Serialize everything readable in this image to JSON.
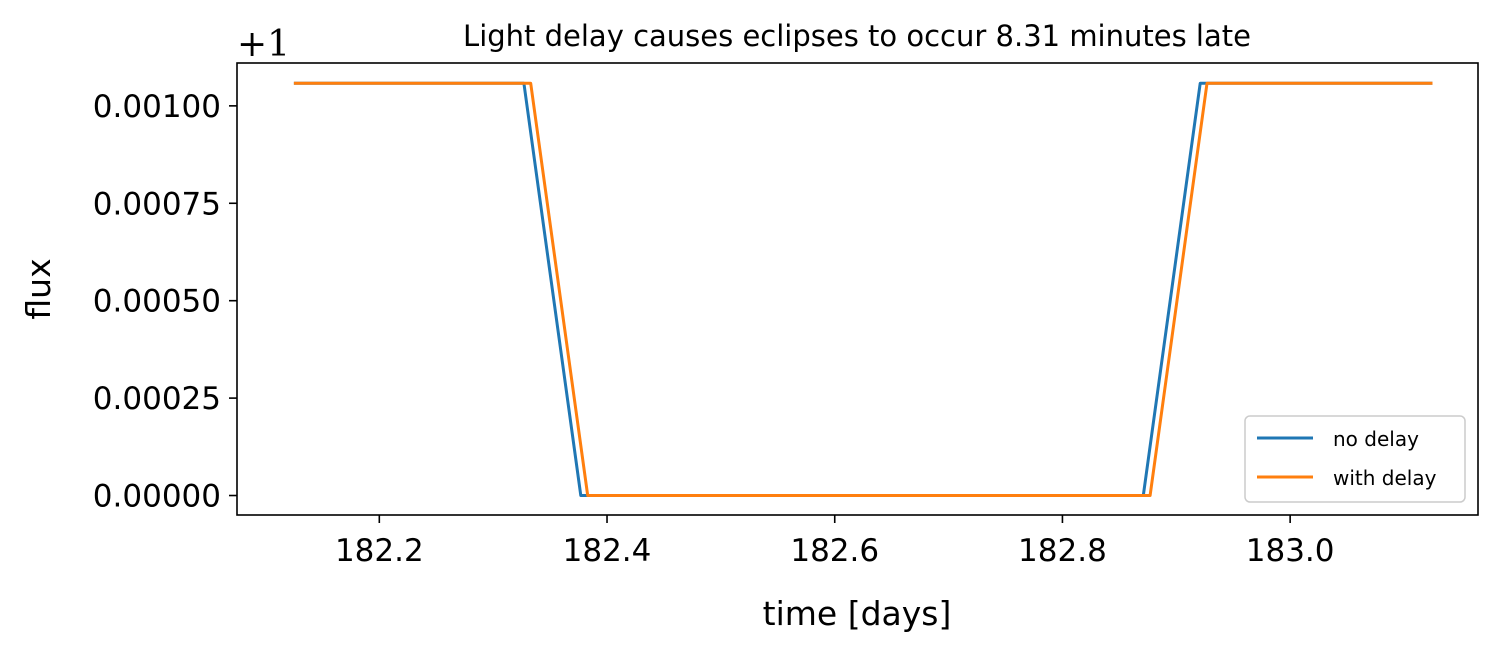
{
  "chart_data": {
    "type": "line",
    "title": "Light delay causes eclipses to occur 8.31 minutes late",
    "xlabel": "time [days]",
    "ylabel": "flux",
    "y_offset_label": "+1",
    "xlim": [
      182.075,
      183.165
    ],
    "ylim": [
      -5e-05,
      0.00111
    ],
    "x_ticks": [
      182.2,
      182.4,
      182.6,
      182.8,
      183.0
    ],
    "x_tick_labels": [
      "182.2",
      "182.4",
      "182.6",
      "182.8",
      "183.0"
    ],
    "y_ticks": [
      0.0,
      0.00025,
      0.0005,
      0.00075,
      0.001
    ],
    "y_tick_labels": [
      "0.00000",
      "0.00025",
      "0.00050",
      "0.00075",
      "0.00100"
    ],
    "grid": false,
    "legend_position": "lower-right",
    "series": [
      {
        "name": "no delay",
        "color": "#1f77b4",
        "x": [
          182.125,
          182.327,
          182.377,
          182.871,
          182.921,
          183.125
        ],
        "y": [
          0.001058,
          0.001058,
          0.0,
          0.0,
          0.001058,
          0.001058
        ]
      },
      {
        "name": "with delay",
        "color": "#ff7f0e",
        "x": [
          182.125,
          182.333,
          182.383,
          182.877,
          182.927,
          183.125
        ],
        "y": [
          0.001058,
          0.001058,
          0.0,
          0.0,
          0.001058,
          0.001058
        ]
      }
    ]
  }
}
